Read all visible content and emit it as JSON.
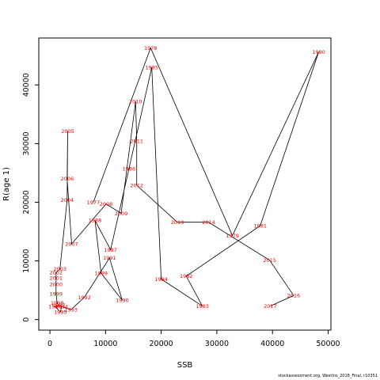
{
  "chart_data": {
    "type": "line",
    "title": "",
    "xlabel": "SSB",
    "ylabel": "R(age 1)",
    "xlim": [
      -2000,
      50500
    ],
    "ylim": [
      -1800,
      48000
    ],
    "xticks": [
      0,
      10000,
      20000,
      30000,
      40000,
      50000
    ],
    "yticks": [
      0,
      10000,
      20000,
      30000,
      40000
    ],
    "grid": false,
    "line_color": "#000000",
    "label_color": "#ff0000",
    "points": [
      {
        "year": "1977",
        "x": 7800,
        "y": 20000
      },
      {
        "year": "1978",
        "x": 18100,
        "y": 46300
      },
      {
        "year": "1979",
        "x": 32800,
        "y": 14300
      },
      {
        "year": "1980",
        "x": 48300,
        "y": 45600
      },
      {
        "year": "1981",
        "x": 37800,
        "y": 16000
      },
      {
        "year": "1982",
        "x": 24500,
        "y": 7400
      },
      {
        "year": "1983",
        "x": 27400,
        "y": 2300
      },
      {
        "year": "1984",
        "x": 20000,
        "y": 6900
      },
      {
        "year": "1985",
        "x": 18300,
        "y": 43000
      },
      {
        "year": "1986",
        "x": 14200,
        "y": 25700
      },
      {
        "year": "1987",
        "x": 10900,
        "y": 11900
      },
      {
        "year": "1988",
        "x": 8100,
        "y": 16900
      },
      {
        "year": "1989",
        "x": 9200,
        "y": 7900
      },
      {
        "year": "1990",
        "x": 13000,
        "y": 3300
      },
      {
        "year": "1991",
        "x": 10700,
        "y": 10500
      },
      {
        "year": "1992",
        "x": 6200,
        "y": 3800
      },
      {
        "year": "1993",
        "x": 3800,
        "y": 1700
      },
      {
        "year": "1994",
        "x": 2100,
        "y": 2200
      },
      {
        "year": "1995",
        "x": 1900,
        "y": 1300
      },
      {
        "year": "1996",
        "x": 900,
        "y": 2200
      },
      {
        "year": "1997",
        "x": 1600,
        "y": 2400
      },
      {
        "year": "1998",
        "x": 1300,
        "y": 2800
      },
      {
        "year": "1999",
        "x": 1100,
        "y": 4400
      },
      {
        "year": "2000",
        "x": 1100,
        "y": 6000
      },
      {
        "year": "2001",
        "x": 1100,
        "y": 7100
      },
      {
        "year": "2002",
        "x": 1100,
        "y": 8000
      },
      {
        "year": "2003",
        "x": 1800,
        "y": 8600
      },
      {
        "year": "2004",
        "x": 3100,
        "y": 20400
      },
      {
        "year": "2005",
        "x": 3200,
        "y": 32100
      },
      {
        "year": "2006",
        "x": 3100,
        "y": 24000
      },
      {
        "year": "2007",
        "x": 3900,
        "y": 12900
      },
      {
        "year": "2008",
        "x": 10100,
        "y": 19700
      },
      {
        "year": "2009",
        "x": 12800,
        "y": 18100
      },
      {
        "year": "2010",
        "x": 15400,
        "y": 37200
      },
      {
        "year": "2011",
        "x": 15600,
        "y": 30400
      },
      {
        "year": "2012",
        "x": 15600,
        "y": 22900
      },
      {
        "year": "2013",
        "x": 22900,
        "y": 16600
      },
      {
        "year": "2014",
        "x": 28500,
        "y": 16600
      },
      {
        "year": "2015",
        "x": 39500,
        "y": 10100
      },
      {
        "year": "2016",
        "x": 43800,
        "y": 4100
      },
      {
        "year": "2017",
        "x": 39600,
        "y": 2300
      }
    ]
  },
  "credit": "stockassessment.org, WestIns_2018_Final, r10351"
}
